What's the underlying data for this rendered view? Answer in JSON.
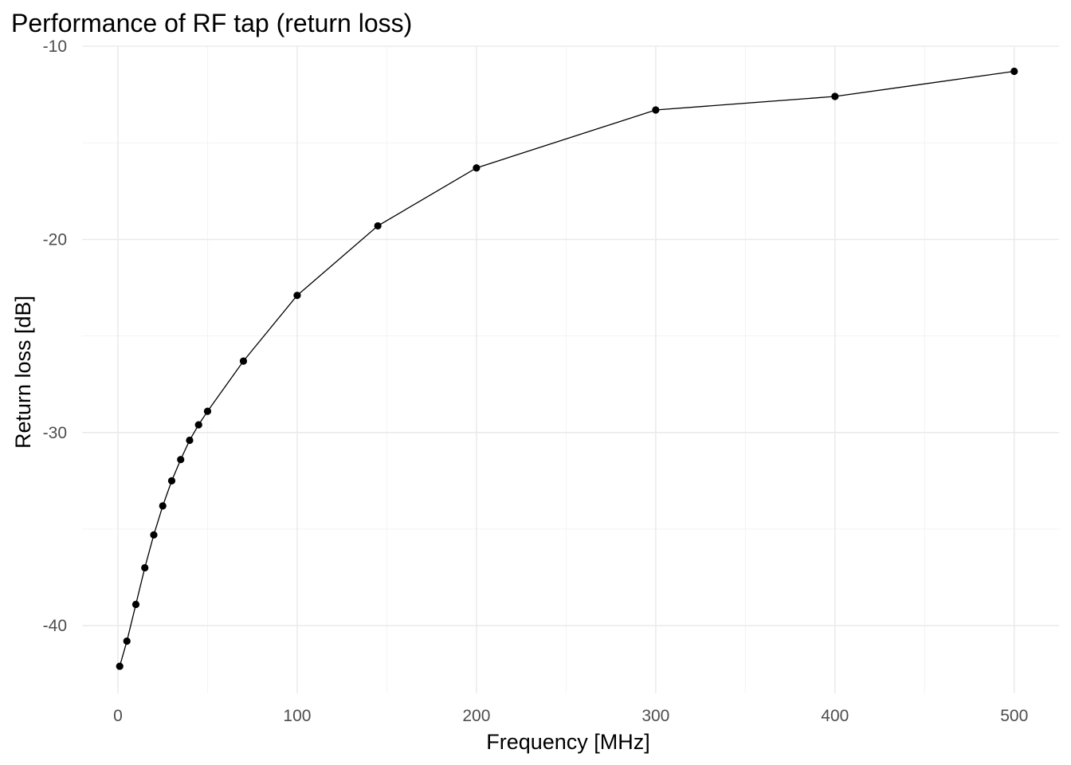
{
  "chart_data": {
    "type": "line",
    "title": "Performance of RF tap (return loss)",
    "xlabel": "Frequency [MHz]",
    "ylabel": "Return loss [dB]",
    "xlim": [
      -20,
      525
    ],
    "ylim": [
      -43.5,
      -10
    ],
    "x_ticks": [
      0,
      100,
      200,
      300,
      400,
      500
    ],
    "x_tick_labels": [
      "0",
      "100",
      "200",
      "300",
      "400",
      "500"
    ],
    "x_minor_ticks": [
      50,
      150,
      250,
      350,
      450
    ],
    "y_ticks": [
      -40,
      -30,
      -20,
      -10
    ],
    "y_tick_labels": [
      "-40",
      "-30",
      "-20",
      "-10"
    ],
    "y_minor_ticks": [
      -35,
      -25,
      -15
    ],
    "grid": true,
    "legend": "none",
    "series": [
      {
        "x": [
          1,
          5,
          10,
          15,
          20,
          25,
          30,
          35,
          40,
          45,
          50,
          70,
          100,
          145,
          200,
          300,
          400,
          500
        ],
        "y": [
          -42.1,
          -40.8,
          -38.9,
          -37.0,
          -35.3,
          -33.8,
          -32.5,
          -31.4,
          -30.4,
          -29.6,
          -28.9,
          -26.3,
          -22.9,
          -19.3,
          -16.3,
          -13.3,
          -12.6,
          -11.3
        ],
        "color": "#000000"
      }
    ]
  }
}
